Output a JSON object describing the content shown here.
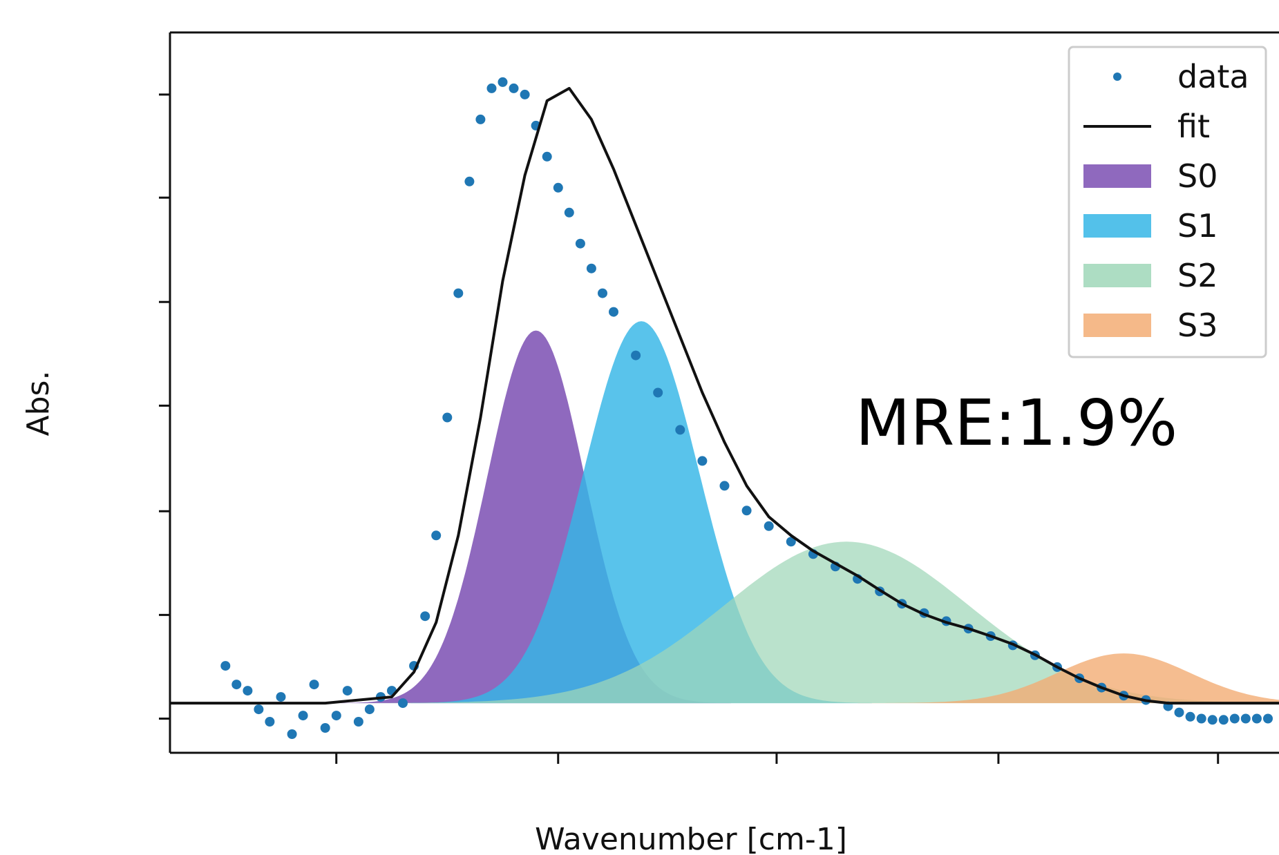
{
  "chart_data": {
    "type": "area",
    "title": "",
    "xlabel": "Wavenumber [cm-1]",
    "ylabel": "Abs.",
    "tick_labels_shown": false,
    "xlim": [
      0,
      100
    ],
    "ylim": [
      -0.08,
      1.08
    ],
    "x_ticks": [
      15,
      35,
      54.7,
      74.7,
      94.5
    ],
    "y_ticks": [
      -0.025,
      0.142,
      0.309,
      0.479,
      0.646,
      0.814,
      0.98
    ],
    "grid": false,
    "legend_position": "top-right",
    "annotation": "MRE:1.9%",
    "colors": {
      "data": "#1f77b4",
      "fit": "#111111",
      "S0": "#7b4fb3",
      "S1": "#35b6e6",
      "S2": "#9fd7b8",
      "S3": "#f3ad74"
    },
    "legend": [
      {
        "label": "data",
        "kind": "marker",
        "color": "#1f77b4"
      },
      {
        "label": "fit",
        "kind": "line",
        "color": "#111111"
      },
      {
        "label": "S0",
        "kind": "patch",
        "color": "#7b4fb3"
      },
      {
        "label": "S1",
        "kind": "patch",
        "color": "#35b6e6"
      },
      {
        "label": "S2",
        "kind": "patch",
        "color": "#9fd7b8"
      },
      {
        "label": "S3",
        "kind": "patch",
        "color": "#f3ad74"
      }
    ],
    "baseline": 0.0,
    "components": [
      {
        "name": "S0",
        "center": 33.0,
        "sigma": 4.4,
        "amplitude": 0.6
      },
      {
        "name": "S1",
        "center": 42.5,
        "sigma": 5.2,
        "amplitude": 0.615
      },
      {
        "name": "S2",
        "center": 61.0,
        "sigma": 11.0,
        "amplitude": 0.26
      },
      {
        "name": "S3",
        "center": 86.0,
        "sigma": 6.0,
        "amplitude": 0.08
      }
    ],
    "series": [
      {
        "name": "fit",
        "x": [
          0,
          14,
          20,
          22,
          24,
          26,
          28,
          30,
          32,
          34,
          36,
          38,
          40,
          42,
          44,
          46,
          48,
          50,
          52,
          54,
          56,
          58,
          60,
          62,
          64,
          66,
          68,
          70,
          72,
          74,
          76,
          78,
          80,
          82,
          84,
          86,
          88,
          90,
          92,
          94,
          96,
          98,
          100
        ],
        "y": [
          0.0,
          0.0,
          0.01,
          0.05,
          0.13,
          0.27,
          0.46,
          0.68,
          0.85,
          0.97,
          0.99,
          0.94,
          0.86,
          0.77,
          0.68,
          0.59,
          0.5,
          0.42,
          0.35,
          0.3,
          0.27,
          0.245,
          0.225,
          0.205,
          0.182,
          0.16,
          0.143,
          0.13,
          0.12,
          0.108,
          0.095,
          0.078,
          0.058,
          0.04,
          0.025,
          0.012,
          0.004,
          0.0,
          0.0,
          0.0,
          0.0,
          0.0,
          0.0
        ]
      },
      {
        "name": "data",
        "x": [
          5,
          6,
          7,
          8,
          9,
          10,
          11,
          12,
          13,
          14,
          15,
          16,
          17,
          18,
          19,
          20,
          21,
          22,
          23,
          24,
          25,
          26,
          27,
          28,
          29,
          30,
          31,
          32,
          33,
          34,
          35,
          36,
          37,
          38,
          39,
          40,
          42,
          44,
          46,
          48,
          50,
          52,
          54,
          56,
          58,
          60,
          62,
          64,
          66,
          68,
          70,
          72,
          74,
          76,
          78,
          80,
          82,
          84,
          86,
          88,
          90,
          91,
          92,
          93,
          94,
          95,
          96,
          97,
          98,
          99
        ],
        "y": [
          0.06,
          0.03,
          0.02,
          -0.01,
          -0.03,
          0.01,
          -0.05,
          -0.02,
          0.03,
          -0.04,
          -0.02,
          0.02,
          -0.03,
          -0.01,
          0.01,
          0.02,
          0.0,
          0.06,
          0.14,
          0.27,
          0.46,
          0.66,
          0.84,
          0.94,
          0.99,
          1.0,
          0.99,
          0.98,
          0.93,
          0.88,
          0.83,
          0.79,
          0.74,
          0.7,
          0.66,
          0.63,
          0.56,
          0.5,
          0.44,
          0.39,
          0.35,
          0.31,
          0.285,
          0.26,
          0.24,
          0.22,
          0.2,
          0.18,
          0.16,
          0.145,
          0.132,
          0.12,
          0.108,
          0.093,
          0.077,
          0.058,
          0.04,
          0.025,
          0.012,
          0.005,
          -0.005,
          -0.015,
          -0.022,
          -0.025,
          -0.027,
          -0.027,
          -0.025,
          -0.025,
          -0.025,
          -0.025
        ]
      }
    ]
  }
}
